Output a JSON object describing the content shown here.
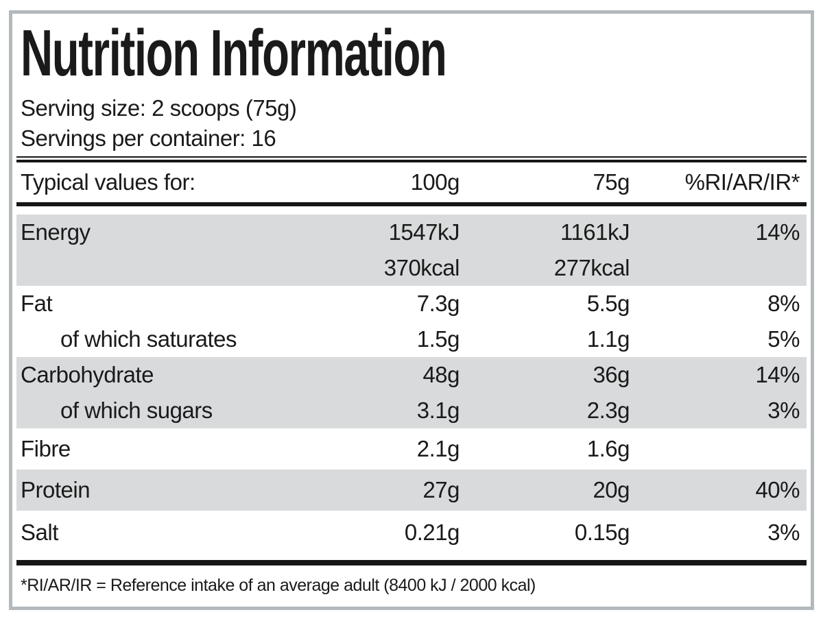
{
  "label": {
    "title": "Nutrition Information",
    "serving_size": "Serving size: 2 scoops (75g)",
    "servings_per_container": "Servings per container: 16",
    "table": {
      "header": {
        "label": "Typical values for:",
        "per_100g": "100g",
        "per_75g": "75g",
        "ri": "%RI/AR/IR*"
      },
      "rows": [
        {
          "name": "Energy",
          "v100": "1547kJ",
          "v100b": "370kcal",
          "v75": "1161kJ",
          "v75b": "277kcal",
          "ri": "14%"
        },
        {
          "name": "Fat",
          "v100": "7.3g",
          "v75": "5.5g",
          "ri": "8%"
        },
        {
          "name": "of which saturates",
          "v100": "1.5g",
          "v75": "1.1g",
          "ri": "5%"
        },
        {
          "name": "Carbohydrate",
          "v100": "48g",
          "v75": "36g",
          "ri": "14%"
        },
        {
          "name": "of which sugars",
          "v100": "3.1g",
          "v75": "2.3g",
          "ri": "3%"
        },
        {
          "name": "Fibre",
          "v100": "2.1g",
          "v75": "1.6g",
          "ri": ""
        },
        {
          "name": "Protein",
          "v100": "27g",
          "v75": "20g",
          "ri": "40%"
        },
        {
          "name": "Salt",
          "v100": "0.21g",
          "v75": "0.15g",
          "ri": "3%"
        }
      ]
    },
    "footnote": "*RI/AR/IR = Reference intake of an average adult (8400 kJ / 2000 kcal)",
    "colors": {
      "shaded_row": "#d8dadb",
      "outer_border": "#b2b8bb",
      "text": "#1a1a1a",
      "rule": "#161616"
    }
  }
}
